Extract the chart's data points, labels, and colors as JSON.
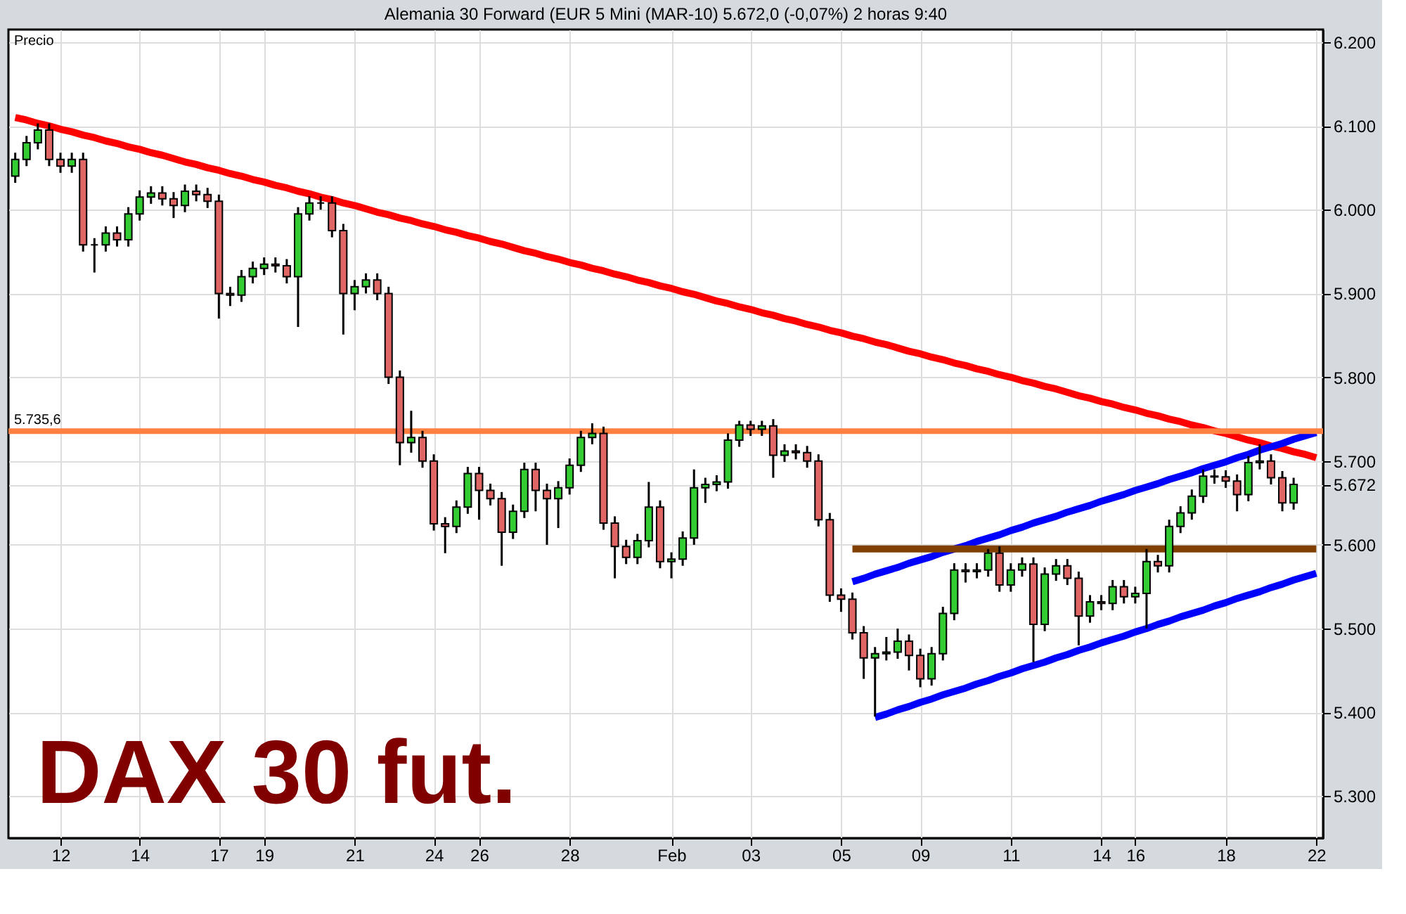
{
  "chart_data": {
    "type": "candlestick",
    "title": "Alemania 30 Forward (EUR 5 Mini (MAR-10)     5.672,0 (-0,07%)     2 horas  9:40",
    "ylabel": "Precio",
    "annotations": [
      "DAX 30 fut."
    ],
    "categories": [
      null,
      null,
      null,
      null,
      "12",
      null,
      null,
      null,
      null,
      null,
      null,
      "14",
      null,
      null,
      null,
      null,
      null,
      null,
      "17",
      null,
      null,
      null,
      "19",
      null,
      null,
      null,
      null,
      null,
      null,
      null,
      "21",
      null,
      null,
      null,
      null,
      null,
      null,
      "24",
      null,
      null,
      null,
      "26",
      null,
      null,
      null,
      null,
      null,
      null,
      null,
      "28",
      null,
      null,
      null,
      null,
      null,
      null,
      null,
      null,
      "Feb",
      null,
      null,
      null,
      null,
      null,
      null,
      "03",
      null,
      null,
      null,
      null,
      null,
      null,
      null,
      "05",
      null,
      null,
      null,
      null,
      null,
      null,
      "09",
      null,
      null,
      null,
      null,
      null,
      null,
      null,
      "11",
      null,
      null,
      null,
      null,
      null,
      null,
      null,
      "14",
      null,
      null,
      "16",
      null,
      null,
      null,
      null,
      null,
      null,
      null,
      "18",
      null,
      null,
      null,
      null,
      null,
      null,
      null,
      "22"
    ],
    "ohlc": [
      [
        6040,
        6068,
        6032,
        6060
      ],
      [
        6060,
        6088,
        6052,
        6080
      ],
      [
        6080,
        6103,
        6072,
        6095
      ],
      [
        6095,
        6103,
        6052,
        6060
      ],
      [
        6060,
        6068,
        6044,
        6052
      ],
      [
        6052,
        6068,
        6044,
        6060
      ],
      [
        6060,
        6068,
        5950,
        5958
      ],
      [
        5958,
        5966,
        5925,
        5958
      ],
      [
        5958,
        5980,
        5950,
        5972
      ],
      [
        5972,
        5980,
        5956,
        5964
      ],
      [
        5964,
        6003,
        5956,
        5995
      ],
      [
        5995,
        6023,
        5987,
        6015
      ],
      [
        6015,
        6028,
        6007,
        6020
      ],
      [
        6020,
        6028,
        6005,
        6013
      ],
      [
        6013,
        6021,
        5990,
        6005
      ],
      [
        6005,
        6030,
        5997,
        6022
      ],
      [
        6022,
        6030,
        6010,
        6018
      ],
      [
        6018,
        6026,
        6002,
        6010
      ],
      [
        6010,
        6018,
        5870,
        5900
      ],
      [
        5900,
        5908,
        5885,
        5898
      ],
      [
        5898,
        5928,
        5890,
        5920
      ],
      [
        5920,
        5938,
        5912,
        5930
      ],
      [
        5930,
        5943,
        5922,
        5935
      ],
      [
        5935,
        5943,
        5925,
        5933
      ],
      [
        5933,
        5941,
        5912,
        5920
      ],
      [
        5920,
        6003,
        5860,
        5995
      ],
      [
        5995,
        6016,
        5987,
        6008
      ],
      [
        6008,
        6016,
        6000,
        6008
      ],
      [
        6008,
        6016,
        5967,
        5975
      ],
      [
        5975,
        5983,
        5851,
        5900
      ],
      [
        5900,
        5916,
        5880,
        5908
      ],
      [
        5908,
        5924,
        5900,
        5916
      ],
      [
        5916,
        5924,
        5892,
        5900
      ],
      [
        5900,
        5908,
        5792,
        5800
      ],
      [
        5800,
        5808,
        5695,
        5722
      ],
      [
        5722,
        5760,
        5710,
        5728
      ],
      [
        5728,
        5736,
        5692,
        5700
      ],
      [
        5700,
        5708,
        5617,
        5625
      ],
      [
        5625,
        5633,
        5590,
        5622
      ],
      [
        5622,
        5653,
        5614,
        5645
      ],
      [
        5645,
        5693,
        5637,
        5685
      ],
      [
        5685,
        5693,
        5630,
        5665
      ],
      [
        5665,
        5673,
        5647,
        5655
      ],
      [
        5655,
        5663,
        5575,
        5615
      ],
      [
        5615,
        5648,
        5607,
        5640
      ],
      [
        5640,
        5698,
        5632,
        5690
      ],
      [
        5690,
        5698,
        5640,
        5665
      ],
      [
        5665,
        5673,
        5600,
        5655
      ],
      [
        5655,
        5676,
        5620,
        5668
      ],
      [
        5668,
        5703,
        5660,
        5695
      ],
      [
        5695,
        5736,
        5687,
        5728
      ],
      [
        5728,
        5745,
        5720,
        5733
      ],
      [
        5733,
        5741,
        5618,
        5626
      ],
      [
        5626,
        5634,
        5560,
        5598
      ],
      [
        5598,
        5606,
        5577,
        5585
      ],
      [
        5585,
        5613,
        5577,
        5605
      ],
      [
        5605,
        5675,
        5597,
        5645
      ],
      [
        5645,
        5653,
        5572,
        5580
      ],
      [
        5580,
        5591,
        5560,
        5583
      ],
      [
        5583,
        5616,
        5575,
        5608
      ],
      [
        5608,
        5690,
        5600,
        5668
      ],
      [
        5668,
        5680,
        5650,
        5672
      ],
      [
        5672,
        5683,
        5664,
        5675
      ],
      [
        5675,
        5733,
        5667,
        5725
      ],
      [
        5725,
        5748,
        5717,
        5743
      ],
      [
        5743,
        5748,
        5730,
        5738
      ],
      [
        5738,
        5748,
        5730,
        5742
      ],
      [
        5742,
        5750,
        5680,
        5707
      ],
      [
        5707,
        5720,
        5699,
        5712
      ],
      [
        5712,
        5720,
        5702,
        5710
      ],
      [
        5710,
        5718,
        5692,
        5700
      ],
      [
        5700,
        5708,
        5622,
        5630
      ],
      [
        5630,
        5638,
        5532,
        5540
      ],
      [
        5540,
        5548,
        5520,
        5535
      ],
      [
        5535,
        5543,
        5487,
        5495
      ],
      [
        5495,
        5503,
        5440,
        5465
      ],
      [
        5465,
        5478,
        5395,
        5470
      ],
      [
        5470,
        5490,
        5462,
        5472
      ],
      [
        5472,
        5500,
        5464,
        5485
      ],
      [
        5485,
        5493,
        5450,
        5468
      ],
      [
        5468,
        5476,
        5430,
        5440
      ],
      [
        5440,
        5478,
        5432,
        5470
      ],
      [
        5470,
        5526,
        5462,
        5518
      ],
      [
        5518,
        5578,
        5510,
        5570
      ],
      [
        5570,
        5578,
        5555,
        5568
      ],
      [
        5568,
        5578,
        5560,
        5570
      ],
      [
        5570,
        5595,
        5562,
        5590
      ],
      [
        5590,
        5598,
        5544,
        5552
      ],
      [
        5552,
        5578,
        5544,
        5570
      ],
      [
        5570,
        5585,
        5562,
        5577
      ],
      [
        5577,
        5585,
        5460,
        5505
      ],
      [
        5505,
        5573,
        5497,
        5565
      ],
      [
        5565,
        5583,
        5557,
        5575
      ],
      [
        5575,
        5583,
        5552,
        5560
      ],
      [
        5560,
        5568,
        5480,
        5515
      ],
      [
        5515,
        5540,
        5507,
        5532
      ],
      [
        5532,
        5540,
        5522,
        5530
      ],
      [
        5530,
        5558,
        5522,
        5550
      ],
      [
        5550,
        5558,
        5530,
        5538
      ],
      [
        5538,
        5550,
        5530,
        5542
      ],
      [
        5542,
        5595,
        5500,
        5580
      ],
      [
        5580,
        5588,
        5567,
        5575
      ],
      [
        5575,
        5630,
        5567,
        5622
      ],
      [
        5622,
        5646,
        5614,
        5638
      ],
      [
        5638,
        5666,
        5630,
        5658
      ],
      [
        5658,
        5690,
        5650,
        5682
      ],
      [
        5682,
        5690,
        5673,
        5681
      ],
      [
        5681,
        5689,
        5668,
        5676
      ],
      [
        5676,
        5684,
        5640,
        5660
      ],
      [
        5660,
        5706,
        5652,
        5698
      ],
      [
        5698,
        5720,
        5690,
        5700
      ],
      [
        5700,
        5708,
        5672,
        5680
      ],
      [
        5680,
        5688,
        5640,
        5650
      ],
      [
        5650,
        5680,
        5642,
        5672
      ],
      null,
      null
    ],
    "series": [
      {
        "type": "line",
        "color": "#ff0000",
        "values": [
          6110,
          6107,
          6103,
          6100,
          6096,
          6093,
          6089,
          6086,
          6082,
          6079,
          6075,
          6072,
          6068,
          6065,
          6061,
          6057,
          6054,
          6050,
          6047,
          6043,
          6040,
          6036,
          6033,
          6029,
          6026,
          6022,
          6019,
          6015,
          6012,
          6008,
          6005,
          6001,
          5997,
          5994,
          5990,
          5987,
          5983,
          5980,
          5976,
          5973,
          5969,
          5966,
          5962,
          5959,
          5955,
          5951,
          5948,
          5944,
          5941,
          5937,
          5934,
          5930,
          5927,
          5923,
          5920,
          5916,
          5913,
          5909,
          5906,
          5902,
          5899,
          5895,
          5891,
          5888,
          5884,
          5881,
          5877,
          5874,
          5870,
          5867,
          5863,
          5860,
          5856,
          5853,
          5849,
          5846,
          5842,
          5839,
          5835,
          5831,
          5828,
          5824,
          5821,
          5817,
          5814,
          5810,
          5807,
          5803,
          5800,
          5796,
          5793,
          5789,
          5786,
          5782,
          5778,
          5775,
          5771,
          5768,
          5764,
          5761,
          5757,
          5754,
          5750,
          5747,
          5743,
          5740,
          5736,
          5733,
          5729,
          5725,
          5722,
          5718,
          5715,
          5711,
          5708,
          5704
        ]
      },
      {
        "type": "line",
        "color": "#0000ff",
        "values": [
          null,
          null,
          null,
          null,
          null,
          null,
          null,
          null,
          null,
          null,
          null,
          null,
          null,
          null,
          null,
          null,
          null,
          null,
          null,
          null,
          null,
          null,
          null,
          null,
          null,
          null,
          null,
          null,
          null,
          null,
          null,
          null,
          null,
          null,
          null,
          null,
          null,
          null,
          null,
          null,
          null,
          null,
          null,
          null,
          null,
          null,
          null,
          null,
          null,
          null,
          null,
          null,
          null,
          null,
          null,
          null,
          null,
          null,
          null,
          null,
          null,
          null,
          null,
          null,
          null,
          null,
          null,
          null,
          null,
          null,
          null,
          null,
          null,
          null,
          5556,
          5560,
          5565,
          5569,
          5573,
          5578,
          5582,
          5586,
          5591,
          5595,
          5599,
          5604,
          5608,
          5612,
          5617,
          5621,
          5626,
          5630,
          5634,
          5639,
          5643,
          5647,
          5652,
          5656,
          5660,
          5665,
          5669,
          5673,
          5678,
          5682,
          5686,
          5691,
          5695,
          5699,
          5704,
          5708,
          5713,
          5717,
          5721,
          5726,
          5730,
          5734
        ]
      },
      {
        "type": "line",
        "color": "#0000ff",
        "values": [
          null,
          null,
          null,
          null,
          null,
          null,
          null,
          null,
          null,
          null,
          null,
          null,
          null,
          null,
          null,
          null,
          null,
          null,
          null,
          null,
          null,
          null,
          null,
          null,
          null,
          null,
          null,
          null,
          null,
          null,
          null,
          null,
          null,
          null,
          null,
          null,
          null,
          null,
          null,
          null,
          null,
          null,
          null,
          null,
          null,
          null,
          null,
          null,
          null,
          null,
          null,
          null,
          null,
          null,
          null,
          null,
          null,
          null,
          null,
          null,
          null,
          null,
          null,
          null,
          null,
          null,
          null,
          null,
          null,
          null,
          null,
          null,
          null,
          null,
          null,
          null,
          5394,
          5398,
          5403,
          5407,
          5412,
          5416,
          5421,
          5425,
          5429,
          5434,
          5438,
          5443,
          5447,
          5452,
          5456,
          5460,
          5465,
          5469,
          5474,
          5478,
          5483,
          5487,
          5491,
          5496,
          5500,
          5505,
          5509,
          5514,
          5518,
          5522,
          5527,
          5531,
          5536,
          5540,
          5544,
          5549,
          5553,
          5558,
          5562,
          5566
        ]
      },
      {
        "type": "line",
        "color": "#804000",
        "values": [
          null,
          null,
          null,
          null,
          null,
          null,
          null,
          null,
          null,
          null,
          null,
          null,
          null,
          null,
          null,
          null,
          null,
          null,
          null,
          null,
          null,
          null,
          null,
          null,
          null,
          null,
          null,
          null,
          null,
          null,
          null,
          null,
          null,
          null,
          null,
          null,
          null,
          null,
          null,
          null,
          null,
          null,
          null,
          null,
          null,
          null,
          null,
          null,
          null,
          null,
          null,
          null,
          null,
          null,
          null,
          null,
          null,
          null,
          null,
          null,
          null,
          null,
          null,
          null,
          null,
          null,
          null,
          null,
          null,
          null,
          null,
          null,
          null,
          null,
          5595,
          5595,
          5595,
          5595,
          5595,
          5595,
          5595,
          5595,
          5595,
          5595,
          5595,
          5595,
          5595,
          5595,
          5595,
          5595,
          5595,
          5595,
          5595,
          5595,
          5595,
          5595,
          5595,
          5595,
          5595,
          5595,
          5595,
          5595,
          5595,
          5595,
          5595,
          5595,
          5595,
          5595,
          5595,
          5595,
          5595,
          5595,
          5595,
          5595,
          5595,
          5595
        ]
      }
    ],
    "ref_lines": [
      {
        "axis": "y",
        "value": 5735.6,
        "label": "5.735,6",
        "color": "#ff8040"
      }
    ],
    "ylim": [
      5250,
      6215
    ],
    "yticks": [
      {
        "value": 5300,
        "label": "5.300"
      },
      {
        "value": 5400,
        "label": "5.400"
      },
      {
        "value": 5500,
        "label": "5.500"
      },
      {
        "value": 5600,
        "label": "5.600"
      },
      {
        "value": 5672,
        "label": "5.672"
      },
      {
        "value": 5700,
        "label": "5.700"
      },
      {
        "value": 5800,
        "label": "5.800"
      },
      {
        "value": 5900,
        "label": "5.900"
      },
      {
        "value": 6000,
        "label": "6.000"
      },
      {
        "value": 6100,
        "label": "6.100"
      },
      {
        "value": 6200,
        "label": "6.200"
      }
    ],
    "grid": true,
    "line_style": "solid"
  }
}
